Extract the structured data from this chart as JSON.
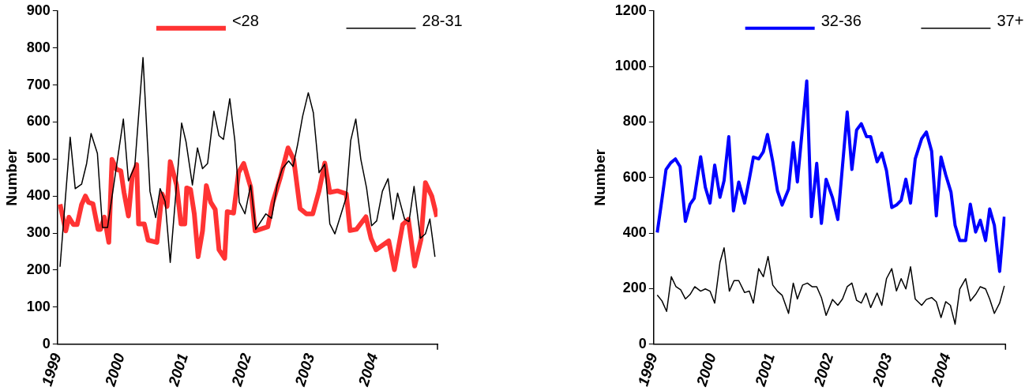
{
  "chart_data": [
    {
      "type": "line",
      "ylabel": "Number",
      "xlim": [
        1999,
        2005
      ],
      "xticks": [
        1999,
        2000,
        2001,
        2002,
        2003,
        2004,
        {
          "value": 2005,
          "label": null
        }
      ],
      "ylim": [
        0,
        900
      ],
      "yticks": [
        0,
        100,
        200,
        300,
        400,
        500,
        600,
        700,
        800,
        900
      ],
      "grid": false,
      "legend": "top",
      "marker": "none",
      "line_style": "solid",
      "series": [
        {
          "name": "<28",
          "color": "#ff3333",
          "x": [
            1999.04,
            1999.13,
            1999.18,
            1999.25,
            1999.31,
            1999.38,
            1999.44,
            1999.49,
            1999.56,
            1999.64,
            1999.68,
            1999.74,
            1999.81,
            1999.86,
            1999.93,
            2000.0,
            2000.05,
            2000.12,
            2000.18,
            2000.25,
            2000.28,
            2000.37,
            2000.43,
            2000.57,
            2000.65,
            2000.73,
            2000.78,
            2000.88,
            2000.95,
            2001.01,
            2001.04,
            2001.1,
            2001.16,
            2001.22,
            2001.29,
            2001.35,
            2001.42,
            2001.49,
            2001.55,
            2001.64,
            2001.68,
            2001.78,
            2001.86,
            2001.94,
            2002.05,
            2002.12,
            2002.32,
            2002.4,
            2002.52,
            2002.64,
            2002.73,
            2002.83,
            2002.93,
            2003.03,
            2003.13,
            2003.22,
            2003.3,
            2003.42,
            2003.56,
            2003.62,
            2003.72,
            2003.87,
            2003.95,
            2004.03,
            2004.23,
            2004.32,
            2004.45,
            2004.54,
            2004.64,
            2004.74,
            2004.81,
            2004.91,
            2004.99
          ],
          "values": [
            378,
            306,
            343,
            323,
            323,
            377,
            400,
            383,
            379,
            310,
            310,
            343,
            275,
            499,
            472,
            468,
            410,
            346,
            453,
            485,
            325,
            325,
            281,
            275,
            406,
            372,
            493,
            430,
            325,
            325,
            422,
            418,
            352,
            236,
            306,
            428,
            383,
            364,
            255,
            232,
            358,
            354,
            464,
            488,
            424,
            306,
            317,
            383,
            451,
            530,
            499,
            366,
            352,
            352,
            414,
            489,
            410,
            414,
            406,
            307,
            310,
            344,
            286,
            255,
            279,
            201,
            323,
            337,
            211,
            283,
            436,
            400,
            344
          ]
        },
        {
          "name": "28-31",
          "color": "#000000",
          "x": [
            1999.04,
            1999.2,
            1999.28,
            1999.38,
            1999.46,
            1999.53,
            1999.63,
            1999.71,
            1999.79,
            2000.04,
            2000.12,
            2000.22,
            2000.35,
            2000.46,
            2000.55,
            2000.62,
            2000.7,
            2000.78,
            2000.96,
            2001.03,
            2001.13,
            2001.21,
            2001.29,
            2001.37,
            2001.47,
            2001.55,
            2001.62,
            2001.72,
            2001.8,
            2001.87,
            2001.96,
            2002.05,
            2002.13,
            2002.29,
            2002.38,
            2002.47,
            2002.55,
            2002.65,
            2002.72,
            2002.79,
            2002.87,
            2002.96,
            2003.04,
            2003.13,
            2003.22,
            2003.3,
            2003.38,
            2003.56,
            2003.63,
            2003.71,
            2003.79,
            2003.88,
            2003.96,
            2004.04,
            2004.13,
            2004.22,
            2004.3,
            2004.37,
            2004.48,
            2004.55,
            2004.63,
            2004.73,
            2004.81,
            2004.88,
            2004.96
          ],
          "values": [
            209,
            559,
            420,
            432,
            488,
            569,
            515,
            315,
            315,
            608,
            441,
            480,
            774,
            413,
            342,
            420,
            385,
            221,
            597,
            546,
            430,
            530,
            474,
            488,
            629,
            563,
            553,
            663,
            550,
            383,
            352,
            430,
            310,
            352,
            340,
            431,
            474,
            495,
            480,
            538,
            615,
            679,
            625,
            463,
            486,
            325,
            298,
            397,
            550,
            608,
            499,
            422,
            320,
            333,
            413,
            447,
            337,
            408,
            338,
            331,
            426,
            286,
            298,
            338,
            236
          ]
        }
      ]
    },
    {
      "type": "line",
      "ylabel": "Number",
      "xlim": [
        1999,
        2005
      ],
      "xticks": [
        1999,
        2000,
        2001,
        2002,
        2003,
        2004,
        {
          "value": 2005,
          "label": null
        }
      ],
      "ylim": [
        0,
        1200
      ],
      "yticks": [
        0,
        200,
        400,
        600,
        800,
        1000,
        1200
      ],
      "grid": false,
      "legend": "top",
      "marker": "none",
      "line_style": "solid",
      "series": [
        {
          "name": "32-36",
          "color": "#0000ff",
          "x": [
            1999.06,
            1999.13,
            1999.21,
            1999.29,
            1999.37,
            1999.45,
            1999.54,
            1999.62,
            1999.69,
            1999.8,
            1999.88,
            1999.96,
            2000.04,
            2000.13,
            2000.2,
            2000.28,
            2000.36,
            2000.45,
            2000.55,
            2000.63,
            2000.7,
            2000.79,
            2000.87,
            2000.94,
            2001.03,
            2001.11,
            2001.19,
            2001.3,
            2001.38,
            2001.45,
            2001.54,
            2001.61,
            2001.69,
            2001.78,
            2001.86,
            2001.94,
            2002.05,
            2002.14,
            2002.3,
            2002.38,
            2002.46,
            2002.54,
            2002.63,
            2002.7,
            2002.81,
            2002.89,
            2002.97,
            2003.06,
            2003.14,
            2003.22,
            2003.3,
            2003.38,
            2003.46,
            2003.57,
            2003.65,
            2003.74,
            2003.82,
            2003.9,
            2003.98,
            2004.07,
            2004.14,
            2004.22,
            2004.32,
            2004.4,
            2004.49,
            2004.57,
            2004.66,
            2004.73,
            2004.81,
            2004.9,
            2004.98
          ],
          "values": [
            402,
            506,
            629,
            653,
            667,
            639,
            442,
            504,
            525,
            675,
            565,
            508,
            645,
            529,
            589,
            747,
            480,
            584,
            508,
            594,
            674,
            667,
            693,
            755,
            657,
            553,
            501,
            558,
            726,
            584,
            786,
            948,
            459,
            651,
            435,
            594,
            527,
            449,
            836,
            629,
            771,
            794,
            747,
            747,
            657,
            688,
            625,
            492,
            501,
            518,
            594,
            508,
            667,
            740,
            764,
            695,
            462,
            674,
            610,
            548,
            428,
            373,
            373,
            504,
            404,
            446,
            373,
            487,
            428,
            262,
            459
          ]
        },
        {
          "name": "37+",
          "color": "#000000",
          "x": [
            1999.06,
            1999.14,
            1999.22,
            1999.3,
            1999.38,
            1999.46,
            1999.54,
            1999.62,
            1999.7,
            1999.8,
            1999.88,
            1999.96,
            2000.04,
            2000.13,
            2000.2,
            2000.29,
            2000.37,
            2000.45,
            2000.55,
            2000.63,
            2000.7,
            2000.79,
            2000.87,
            2000.95,
            2001.03,
            2001.11,
            2001.19,
            2001.3,
            2001.38,
            2001.45,
            2001.54,
            2001.62,
            2001.7,
            2001.78,
            2001.86,
            2001.94,
            2002.05,
            2002.14,
            2002.22,
            2002.3,
            2002.38,
            2002.46,
            2002.54,
            2002.62,
            2002.7,
            2002.81,
            2002.89,
            2002.97,
            2003.06,
            2003.14,
            2003.22,
            2003.3,
            2003.38,
            2003.46,
            2003.57,
            2003.65,
            2003.74,
            2003.82,
            2003.9,
            2003.98,
            2004.06,
            2004.14,
            2004.22,
            2004.32,
            2004.4,
            2004.49,
            2004.57,
            2004.66,
            2004.73,
            2004.81,
            2004.9,
            2004.98
          ],
          "values": [
            177,
            156,
            118,
            243,
            207,
            196,
            163,
            179,
            207,
            191,
            199,
            191,
            148,
            295,
            347,
            191,
            229,
            229,
            186,
            191,
            148,
            272,
            243,
            316,
            213,
            191,
            176,
            111,
            220,
            163,
            213,
            220,
            207,
            207,
            168,
            104,
            161,
            140,
            163,
            207,
            220,
            158,
            148,
            184,
            132,
            184,
            140,
            236,
            272,
            192,
            236,
            199,
            279,
            163,
            140,
            161,
            168,
            153,
            96,
            153,
            140,
            72,
            199,
            236,
            156,
            179,
            207,
            199,
            163,
            111,
            148,
            210
          ]
        }
      ]
    }
  ]
}
